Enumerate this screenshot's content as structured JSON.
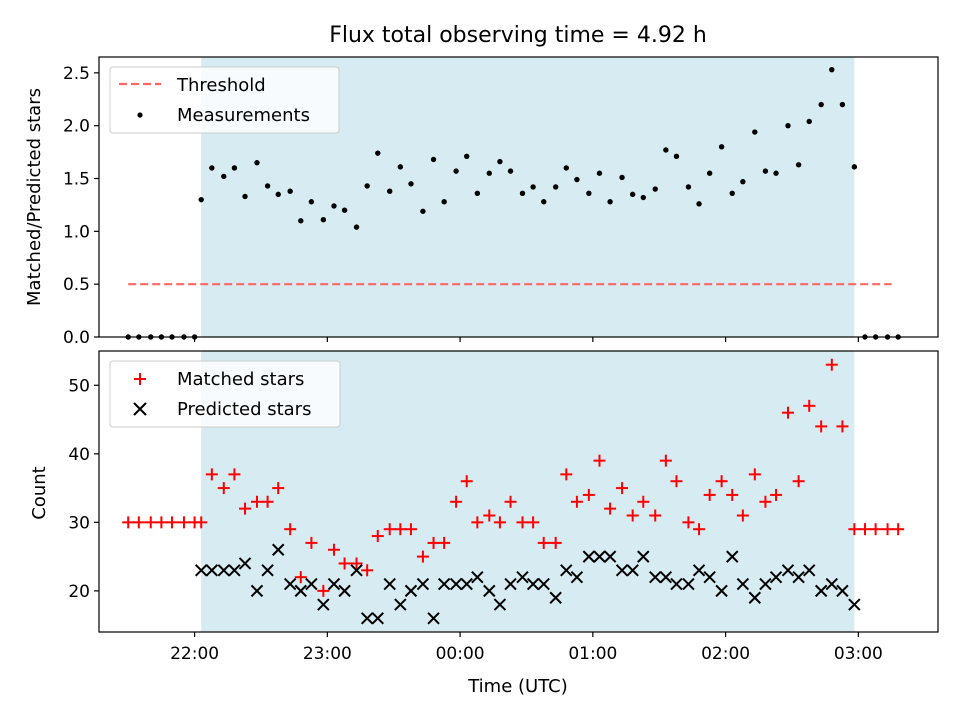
{
  "figure": {
    "title": "Flux total observing time = 4.92 h",
    "xlabel": "Time (UTC)",
    "x_tick_labels": [
      "22:00",
      "23:00",
      "00:00",
      "01:00",
      "02:00",
      "03:00"
    ]
  },
  "colors": {
    "shade": "#add8e6",
    "threshold": "#ff6666",
    "measurement": "#000000",
    "matched": "#ff0000",
    "predicted": "#000000"
  },
  "chart_data": [
    {
      "type": "scatter",
      "panel": "top",
      "ylabel": "Matched/Predicted stars",
      "ylim": [
        0,
        2.65
      ],
      "yticks": [
        0.0,
        0.5,
        1.0,
        1.5,
        2.0,
        2.5
      ],
      "ytick_labels": [
        "0.0",
        "0.5",
        "1.0",
        "1.5",
        "2.0",
        "2.5"
      ],
      "xlim": [
        21.28,
        27.6
      ],
      "x_ticks": [
        22,
        23,
        24,
        25,
        26,
        27
      ],
      "shaded_span": [
        22.05,
        26.97
      ],
      "legend": {
        "placement": "upper-left",
        "entries": [
          "Threshold",
          "Measurements"
        ]
      },
      "threshold": {
        "name": "Threshold",
        "value": 0.5,
        "x_range": [
          21.5,
          27.25
        ]
      },
      "series": [
        {
          "name": "Measurements",
          "marker": "dot",
          "x": [
            21.5,
            21.58,
            21.67,
            21.75,
            21.83,
            21.92,
            22.0,
            22.05,
            22.13,
            22.22,
            22.3,
            22.38,
            22.47,
            22.55,
            22.63,
            22.72,
            22.8,
            22.88,
            22.97,
            23.05,
            23.13,
            23.22,
            23.3,
            23.38,
            23.47,
            23.55,
            23.63,
            23.72,
            23.8,
            23.88,
            23.97,
            24.05,
            24.13,
            24.22,
            24.3,
            24.38,
            24.47,
            24.55,
            24.63,
            24.72,
            24.8,
            24.88,
            24.97,
            25.05,
            25.13,
            25.22,
            25.3,
            25.38,
            25.47,
            25.55,
            25.63,
            25.72,
            25.8,
            25.88,
            25.97,
            26.05,
            26.13,
            26.22,
            26.3,
            26.38,
            26.47,
            26.55,
            26.63,
            26.72,
            26.8,
            26.88,
            26.97,
            27.05,
            27.13,
            27.22,
            27.3
          ],
          "y": [
            0,
            0,
            0,
            0,
            0,
            0,
            0,
            1.3,
            1.6,
            1.52,
            1.6,
            1.33,
            1.65,
            1.43,
            1.35,
            1.38,
            1.1,
            1.28,
            1.11,
            1.24,
            1.2,
            1.04,
            1.43,
            1.74,
            1.38,
            1.61,
            1.45,
            1.19,
            1.68,
            1.28,
            1.57,
            1.71,
            1.36,
            1.55,
            1.66,
            1.57,
            1.36,
            1.42,
            1.28,
            1.42,
            1.6,
            1.49,
            1.36,
            1.55,
            1.28,
            1.51,
            1.35,
            1.32,
            1.4,
            1.77,
            1.71,
            1.42,
            1.26,
            1.55,
            1.8,
            1.36,
            1.47,
            1.94,
            1.57,
            1.55,
            2.0,
            1.63,
            2.04,
            2.2,
            2.53,
            2.2,
            1.61,
            0,
            0,
            0,
            0
          ]
        }
      ]
    },
    {
      "type": "scatter",
      "panel": "bottom",
      "ylabel": "Count",
      "ylim": [
        14,
        55
      ],
      "yticks": [
        20,
        30,
        40,
        50
      ],
      "ytick_labels": [
        "20",
        "30",
        "40",
        "50"
      ],
      "xlim": [
        21.28,
        27.6
      ],
      "x_ticks": [
        22,
        23,
        24,
        25,
        26,
        27
      ],
      "shaded_span": [
        22.05,
        26.97
      ],
      "legend": {
        "placement": "upper-left",
        "entries": [
          "Matched stars",
          "Predicted stars"
        ]
      },
      "series": [
        {
          "name": "Matched stars",
          "marker": "plus",
          "x": [
            21.5,
            21.58,
            21.67,
            21.75,
            21.83,
            21.92,
            22.0,
            22.05,
            22.13,
            22.22,
            22.3,
            22.38,
            22.47,
            22.55,
            22.63,
            22.72,
            22.8,
            22.88,
            22.97,
            23.05,
            23.13,
            23.22,
            23.3,
            23.38,
            23.47,
            23.55,
            23.63,
            23.72,
            23.8,
            23.88,
            23.97,
            24.05,
            24.13,
            24.22,
            24.3,
            24.38,
            24.47,
            24.55,
            24.63,
            24.72,
            24.8,
            24.88,
            24.97,
            25.05,
            25.13,
            25.22,
            25.3,
            25.38,
            25.47,
            25.55,
            25.63,
            25.72,
            25.8,
            25.88,
            25.97,
            26.05,
            26.13,
            26.22,
            26.3,
            26.38,
            26.47,
            26.55,
            26.63,
            26.72,
            26.8,
            26.88,
            26.97,
            27.05,
            27.13,
            27.22,
            27.3
          ],
          "y": [
            30,
            30,
            30,
            30,
            30,
            30,
            30,
            30,
            37,
            35,
            37,
            32,
            33,
            33,
            35,
            29,
            22,
            27,
            20,
            26,
            24,
            24,
            23,
            28,
            29,
            29,
            29,
            25,
            27,
            27,
            33,
            36,
            30,
            31,
            30,
            33,
            30,
            30,
            27,
            27,
            37,
            33,
            34,
            39,
            32,
            35,
            31,
            33,
            31,
            39,
            36,
            30,
            29,
            34,
            36,
            34,
            31,
            37,
            33,
            34,
            46,
            36,
            47,
            44,
            53,
            44,
            29,
            29,
            29,
            29,
            29
          ]
        },
        {
          "name": "Predicted stars",
          "marker": "x",
          "x": [
            22.05,
            22.13,
            22.22,
            22.3,
            22.38,
            22.47,
            22.55,
            22.63,
            22.72,
            22.8,
            22.88,
            22.97,
            23.05,
            23.13,
            23.22,
            23.3,
            23.38,
            23.47,
            23.55,
            23.63,
            23.72,
            23.8,
            23.88,
            23.97,
            24.05,
            24.13,
            24.22,
            24.3,
            24.38,
            24.47,
            24.55,
            24.63,
            24.72,
            24.8,
            24.88,
            24.97,
            25.05,
            25.13,
            25.22,
            25.3,
            25.38,
            25.47,
            25.55,
            25.63,
            25.72,
            25.8,
            25.88,
            25.97,
            26.05,
            26.13,
            26.22,
            26.3,
            26.38,
            26.47,
            26.55,
            26.63,
            26.72,
            26.8,
            26.88,
            26.97
          ],
          "y": [
            23,
            23,
            23,
            23,
            24,
            20,
            23,
            26,
            21,
            20,
            21,
            18,
            21,
            20,
            23,
            16,
            16,
            21,
            18,
            20,
            21,
            16,
            21,
            21,
            21,
            22,
            20,
            18,
            21,
            22,
            21,
            21,
            19,
            23,
            22,
            25,
            25,
            25,
            23,
            23,
            25,
            22,
            22,
            21,
            21,
            23,
            22,
            20,
            25,
            21,
            19,
            21,
            22,
            23,
            22,
            23,
            20,
            21,
            20,
            18
          ]
        }
      ]
    }
  ]
}
